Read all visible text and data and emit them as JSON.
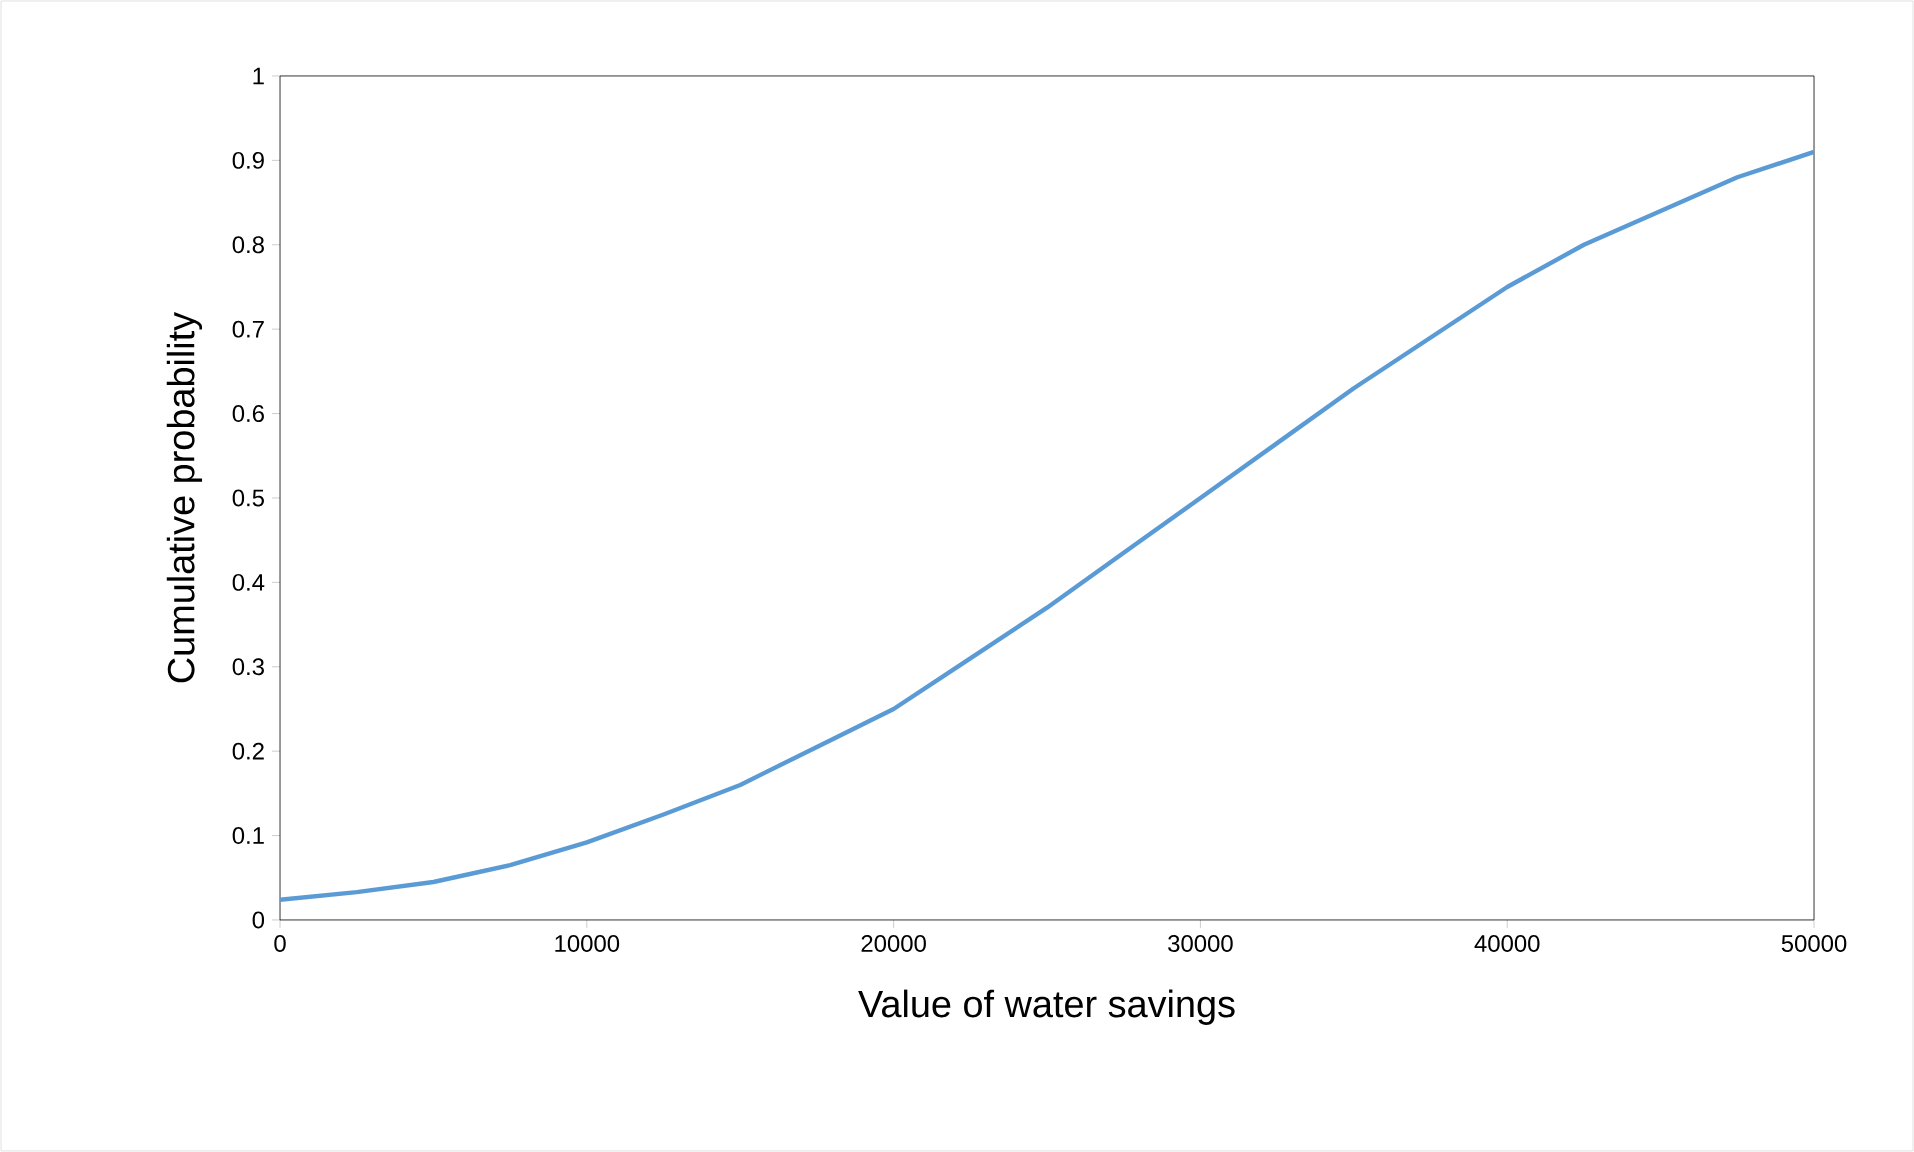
{
  "chart_data": {
    "type": "line",
    "xlabel": "Value of water savings",
    "ylabel": "Cumulative probability",
    "x": [
      0,
      2500,
      5000,
      7500,
      10000,
      12500,
      15000,
      17500,
      20000,
      22500,
      25000,
      27500,
      30000,
      32500,
      35000,
      37500,
      40000,
      42500,
      45000,
      47500,
      50000
    ],
    "series": [
      {
        "color": "#5b9bd5",
        "values": [
          0.024,
          0.033,
          0.045,
          0.065,
          0.092,
          0.125,
          0.16,
          0.205,
          0.25,
          0.31,
          0.37,
          0.435,
          0.5,
          0.565,
          0.63,
          0.69,
          0.75,
          0.8,
          0.84,
          0.88,
          0.91
        ]
      }
    ],
    "xlim": [
      0,
      50000
    ],
    "ylim": [
      0,
      1
    ],
    "xticks": [
      0,
      10000,
      20000,
      30000,
      40000,
      50000
    ],
    "yticks": [
      0,
      0.1,
      0.2,
      0.3,
      0.4,
      0.5,
      0.6,
      0.7,
      0.8,
      0.9,
      1
    ],
    "grid": false,
    "marker": "none",
    "line_style": "solid"
  }
}
